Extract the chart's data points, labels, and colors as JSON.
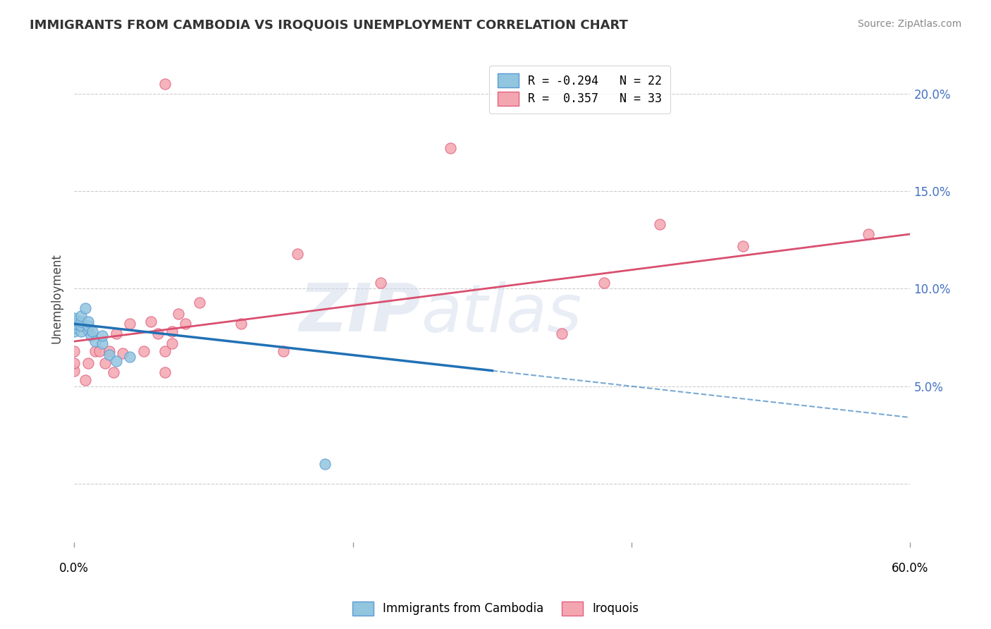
{
  "title": "IMMIGRANTS FROM CAMBODIA VS IROQUOIS UNEMPLOYMENT CORRELATION CHART",
  "source": "Source: ZipAtlas.com",
  "ylabel": "Unemployment",
  "watermark_zip": "ZIP",
  "watermark_atlas": "atlas",
  "series1_name": "Immigrants from Cambodia",
  "series2_name": "Iroquois",
  "series1_color": "#92c5de",
  "series2_color": "#f4a6b0",
  "series1_edge": "#5b9bd5",
  "series2_edge": "#e06080",
  "line1_color": "#2171b5",
  "line2_color": "#d94f6f",
  "xmin": 0.0,
  "xmax": 0.6,
  "ymin": -0.03,
  "ymax": 0.22,
  "yticks": [
    0.0,
    0.05,
    0.1,
    0.15,
    0.2
  ],
  "ytick_labels": [
    "",
    "5.0%",
    "10.0%",
    "15.0%",
    "20.0%"
  ],
  "legend_labels": [
    "R = -0.294   N = 22",
    "R =  0.357   N = 33"
  ],
  "series1_x": [
    0.0,
    0.0,
    0.0,
    0.0,
    0.0,
    0.005,
    0.005,
    0.005,
    0.005,
    0.008,
    0.01,
    0.01,
    0.01,
    0.012,
    0.013,
    0.015,
    0.02,
    0.02,
    0.025,
    0.03,
    0.04,
    0.18
  ],
  "series1_y": [
    0.078,
    0.08,
    0.082,
    0.084,
    0.085,
    0.078,
    0.081,
    0.083,
    0.086,
    0.09,
    0.079,
    0.081,
    0.083,
    0.076,
    0.078,
    0.073,
    0.072,
    0.076,
    0.066,
    0.063,
    0.065,
    0.01
  ],
  "series2_x": [
    0.0,
    0.0,
    0.0,
    0.008,
    0.01,
    0.015,
    0.018,
    0.022,
    0.025,
    0.028,
    0.03,
    0.035,
    0.04,
    0.05,
    0.055,
    0.06,
    0.065,
    0.065,
    0.07,
    0.07,
    0.075,
    0.08,
    0.09,
    0.12,
    0.15,
    0.16,
    0.22,
    0.27,
    0.35,
    0.38,
    0.42,
    0.48,
    0.57
  ],
  "series2_y": [
    0.058,
    0.062,
    0.068,
    0.053,
    0.062,
    0.068,
    0.068,
    0.062,
    0.068,
    0.057,
    0.077,
    0.067,
    0.082,
    0.068,
    0.083,
    0.077,
    0.057,
    0.068,
    0.072,
    0.078,
    0.087,
    0.082,
    0.093,
    0.082,
    0.068,
    0.118,
    0.103,
    0.172,
    0.077,
    0.103,
    0.133,
    0.122,
    0.128
  ],
  "series2_outlier_x": [
    0.065
  ],
  "series2_outlier_y": [
    0.205
  ],
  "line1_x0": 0.0,
  "line1_x1": 0.6,
  "line1_y0": 0.082,
  "line1_y1": 0.034,
  "line1_solid_end": 0.3,
  "line2_x0": 0.0,
  "line2_x1": 0.6,
  "line2_y0": 0.073,
  "line2_y1": 0.128
}
